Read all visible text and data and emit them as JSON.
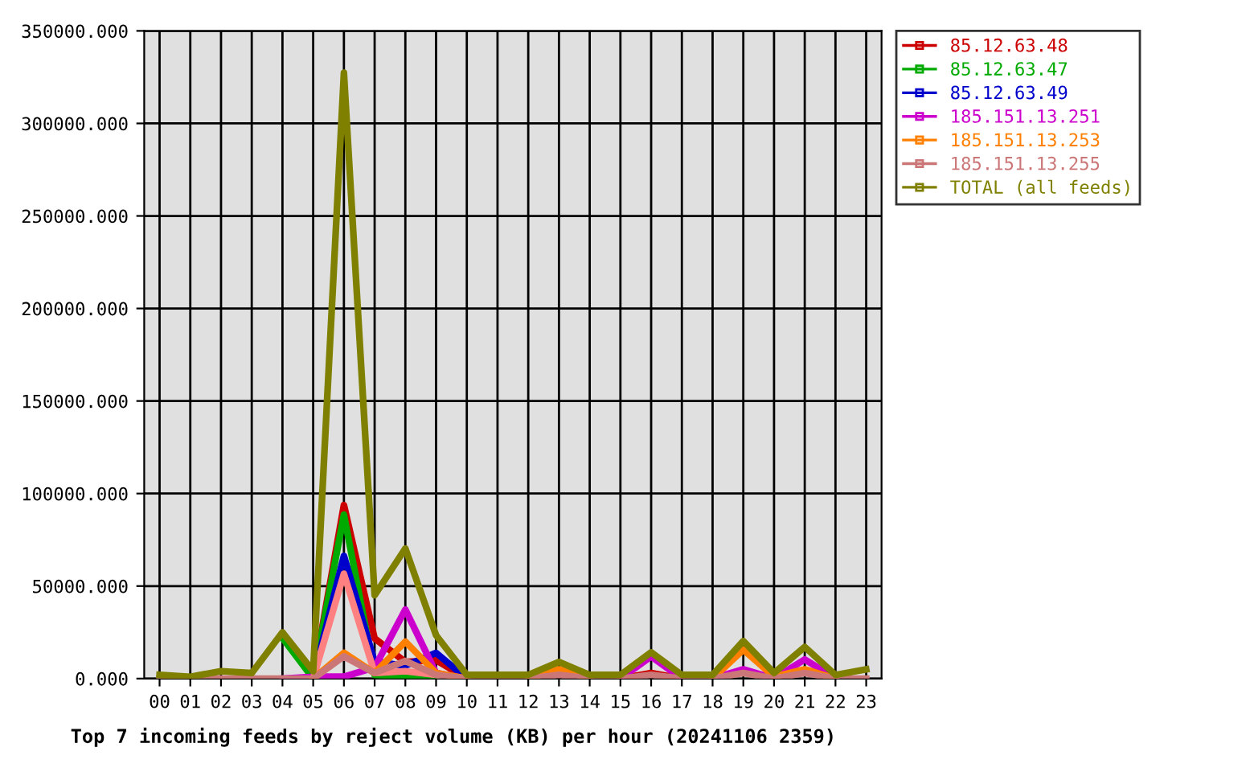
{
  "chart_data": {
    "type": "line",
    "title": "Top 7 incoming feeds by reject volume (KB) per hour (20241106 2359)",
    "categories": [
      "00",
      "01",
      "02",
      "03",
      "04",
      "05",
      "06",
      "07",
      "08",
      "09",
      "10",
      "11",
      "12",
      "13",
      "14",
      "15",
      "16",
      "17",
      "18",
      "19",
      "20",
      "21",
      "22",
      "23"
    ],
    "series": [
      {
        "name": "85.12.63.48",
        "color": "#cc0000",
        "values": [
          null,
          null,
          null,
          null,
          null,
          0,
          93800,
          21700,
          9000,
          10000,
          0,
          null,
          null,
          null,
          null,
          0,
          3000,
          0,
          null,
          null,
          null,
          null,
          null,
          null
        ]
      },
      {
        "name": "85.12.63.47",
        "color": "#00aa00",
        "values": [
          null,
          null,
          null,
          null,
          22000,
          0,
          88600,
          2000,
          1000,
          0,
          null,
          null,
          null,
          null,
          null,
          null,
          null,
          null,
          null,
          null,
          null,
          null,
          null,
          null
        ]
      },
      {
        "name": "85.12.63.49",
        "color": "#0000cc",
        "values": [
          null,
          null,
          null,
          null,
          null,
          0,
          66300,
          9000,
          7000,
          13900,
          0,
          null,
          null,
          null,
          null,
          null,
          null,
          null,
          null,
          null,
          null,
          null,
          null,
          null
        ]
      },
      {
        "name": "185.151.13.251",
        "color": "#cc00cc",
        "values": [
          null,
          null,
          null,
          null,
          0,
          1000,
          1000,
          6000,
          37300,
          3000,
          0,
          null,
          null,
          null,
          null,
          0,
          11900,
          0,
          0,
          5000,
          0,
          10400,
          0,
          null
        ]
      },
      {
        "color": "#ff8080",
        "values": [
          null,
          null,
          null,
          null,
          null,
          0,
          56700,
          3000,
          4000,
          2000,
          null,
          null,
          null,
          null,
          null,
          null,
          null,
          null,
          null,
          null,
          null,
          null,
          null,
          null
        ]
      },
      {
        "name": "185.151.13.253",
        "color": "#ff8000",
        "values": [
          null,
          null,
          null,
          null,
          null,
          0,
          13900,
          3000,
          20000,
          3000,
          0,
          null,
          0,
          5000,
          0,
          null,
          null,
          null,
          0,
          15600,
          1000,
          5000,
          0,
          null
        ]
      },
      {
        "name": "185.151.13.255",
        "color": "#cc7777",
        "values": [
          0,
          0,
          0,
          0,
          0,
          0,
          12000,
          3000,
          9500,
          2000,
          0,
          0,
          0,
          2000,
          0,
          0,
          2000,
          0,
          0,
          3000,
          0,
          3000,
          0,
          0
        ]
      },
      {
        "name": "TOTAL (all feeds)",
        "color": "#808000",
        "values": [
          2000,
          1000,
          4000,
          3000,
          25000,
          4000,
          327400,
          45000,
          70300,
          23400,
          2000,
          2000,
          2000,
          9000,
          2000,
          2000,
          14200,
          2000,
          2000,
          20300,
          3000,
          17100,
          2000,
          5000
        ]
      }
    ],
    "ylim": [
      0,
      350000
    ],
    "yticks": [
      {
        "value": 0,
        "label": "0.000"
      },
      {
        "value": 50000,
        "label": "50000.000"
      },
      {
        "value": 100000,
        "label": "100000.000"
      },
      {
        "value": 150000,
        "label": "150000.000"
      },
      {
        "value": 200000,
        "label": "200000.000"
      },
      {
        "value": 250000,
        "label": "250000.000"
      },
      {
        "value": 300000,
        "label": "300000.000"
      },
      {
        "value": 350000,
        "label": "350000.000"
      }
    ],
    "grid": true,
    "legend": "top right",
    "line_style": "solid"
  }
}
